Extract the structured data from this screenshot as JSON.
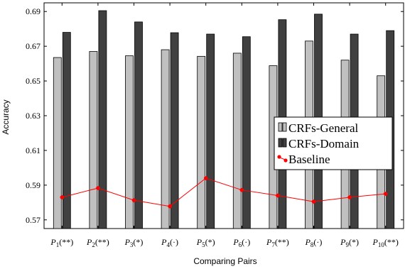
{
  "chart_data": {
    "type": "bar",
    "title": "",
    "xlabel": "Comparing Pairs",
    "ylabel": "Accuracy",
    "ylim": [
      0.565,
      0.695
    ],
    "yticks": [
      "0.57",
      "0.59",
      "0.61",
      "0.63",
      "0.65",
      "0.67",
      "0.69"
    ],
    "categories": [
      {
        "base": "P",
        "sub": "1",
        "tail": "(**)"
      },
      {
        "base": "P",
        "sub": "2",
        "tail": "(**)"
      },
      {
        "base": "P",
        "sub": "3",
        "tail": "(*)"
      },
      {
        "base": "P",
        "sub": "4",
        "tail": "(·)"
      },
      {
        "base": "P",
        "sub": "5",
        "tail": "(*)"
      },
      {
        "base": "P",
        "sub": "6",
        "tail": "(·)"
      },
      {
        "base": "P",
        "sub": "7",
        "tail": "(**)"
      },
      {
        "base": "P",
        "sub": "8",
        "tail": "(·)"
      },
      {
        "base": "P",
        "sub": "9",
        "tail": "(*)"
      },
      {
        "base": "P",
        "sub": "10",
        "tail": "(**)"
      }
    ],
    "series": [
      {
        "name": "CRFs-General",
        "kind": "bar",
        "color": "#c0c0c0",
        "values": [
          0.6635,
          0.667,
          0.6645,
          0.668,
          0.6642,
          0.666,
          0.6588,
          0.673,
          0.662,
          0.653
        ]
      },
      {
        "name": "CRFs-Domain",
        "kind": "bar",
        "color": "#404040",
        "values": [
          0.678,
          0.6905,
          0.684,
          0.6778,
          0.677,
          0.6755,
          0.6853,
          0.6885,
          0.677,
          0.679
        ]
      },
      {
        "name": "Baseline",
        "kind": "line",
        "color": "#ff0000",
        "values": [
          0.583,
          0.5883,
          0.5813,
          0.5778,
          0.594,
          0.5872,
          0.584,
          0.5805,
          0.583,
          0.585
        ]
      }
    ],
    "grid": false,
    "legend_position": "right"
  }
}
